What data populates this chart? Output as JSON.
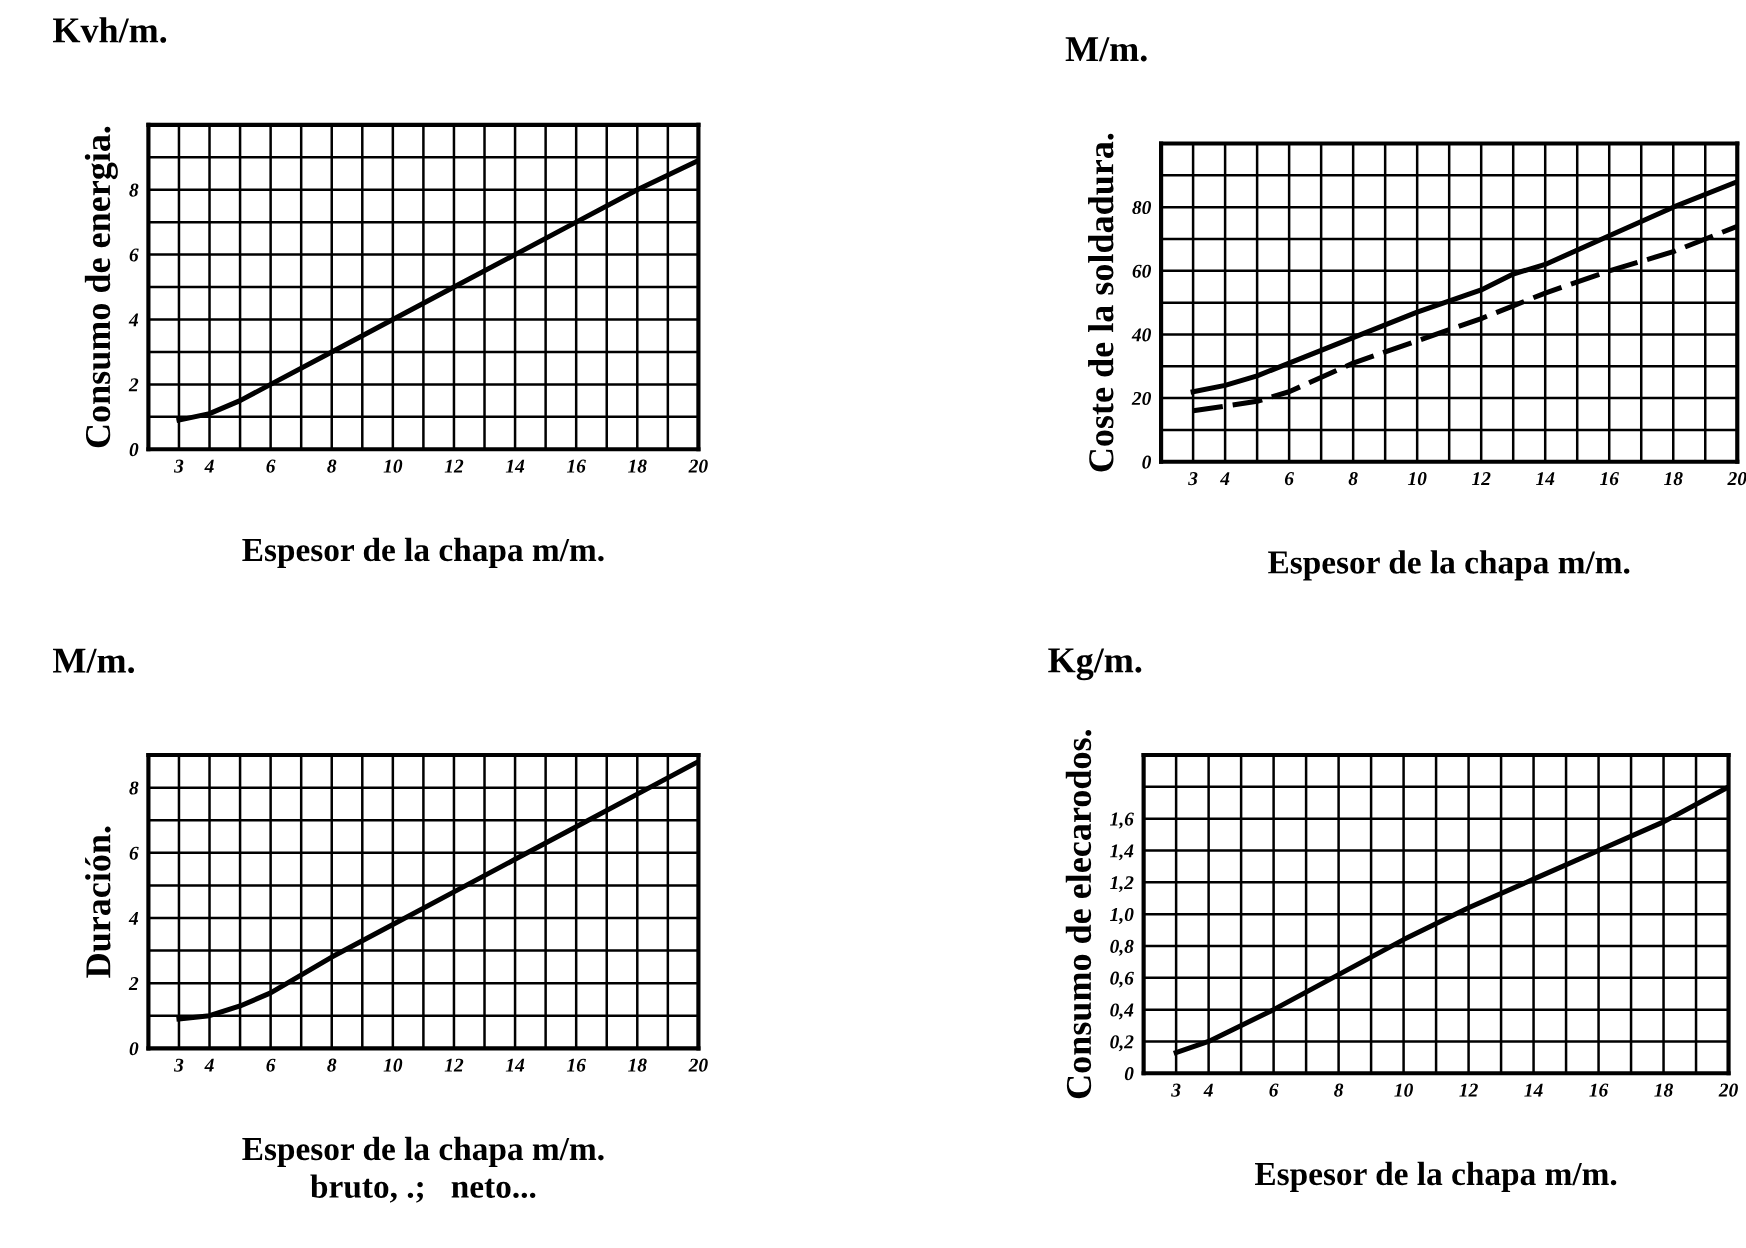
{
  "chart_data": [
    {
      "type": "line",
      "title": "Kvh/m.",
      "ylabel": "Consumo de energia.",
      "xlabel": "Espesor de la chapa m/m.",
      "x": [
        3,
        4,
        5,
        6,
        8,
        10,
        12,
        14,
        16,
        18,
        20
      ],
      "series": [
        {
          "color": "#000000",
          "values": [
            0.9,
            1.1,
            1.5,
            2.0,
            3.0,
            4.0,
            5.0,
            6.0,
            7.0,
            8.0,
            8.9
          ]
        }
      ],
      "xlim": [
        2,
        20
      ],
      "ylim": [
        0,
        10
      ],
      "xticks": [
        3,
        4,
        {
          "value": 5,
          "label": null
        },
        6,
        {
          "value": 7,
          "label": null
        },
        8,
        {
          "value": 9,
          "label": null
        },
        10,
        {
          "value": 11,
          "label": null
        },
        12,
        {
          "value": 13,
          "label": null
        },
        14,
        {
          "value": 15,
          "label": null
        },
        16,
        {
          "value": 17,
          "label": null
        },
        18,
        {
          "value": 19,
          "label": null
        },
        20
      ],
      "yticks": [
        0,
        {
          "value": 1,
          "label": null
        },
        2,
        {
          "value": 3,
          "label": null
        },
        4,
        {
          "value": 5,
          "label": null
        },
        6,
        {
          "value": 7,
          "label": null
        },
        8,
        {
          "value": 9,
          "label": null
        }
      ],
      "grid": true,
      "line_style": "solid",
      "marker": "none"
    },
    {
      "type": "line",
      "title": "M/m.",
      "ylabel": "Coste de la soldadura.",
      "xlabel": "Espesor de la chapa m/m.",
      "x": [
        3,
        4,
        5,
        6,
        8,
        10,
        12,
        13,
        14,
        16,
        18,
        20
      ],
      "series": [
        {
          "color": "#000000",
          "values": [
            22,
            24,
            27,
            31,
            39,
            47,
            54,
            59,
            62,
            71,
            80,
            88
          ]
        },
        {
          "color": "#000000",
          "values": [
            16,
            17.5,
            19,
            22,
            31,
            38,
            45,
            49,
            53,
            60,
            66,
            74
          ],
          "line_style": "dashed"
        }
      ],
      "xlim": [
        2,
        20
      ],
      "ylim": [
        0,
        100
      ],
      "xticks": [
        3,
        4,
        {
          "value": 5,
          "label": null
        },
        6,
        {
          "value": 7,
          "label": null
        },
        8,
        {
          "value": 9,
          "label": null
        },
        10,
        {
          "value": 11,
          "label": null
        },
        12,
        {
          "value": 13,
          "label": null
        },
        14,
        {
          "value": 15,
          "label": null
        },
        16,
        {
          "value": 17,
          "label": null
        },
        18,
        {
          "value": 19,
          "label": null
        },
        20
      ],
      "yticks": [
        0,
        {
          "value": 10,
          "label": null
        },
        20,
        {
          "value": 30,
          "label": null
        },
        40,
        {
          "value": 50,
          "label": null
        },
        60,
        {
          "value": 70,
          "label": null
        },
        80,
        {
          "value": 90,
          "label": null
        }
      ],
      "grid": true,
      "line_style": "solid",
      "marker": "none"
    },
    {
      "type": "line",
      "title": "M/m.",
      "ylabel": "Duración.",
      "xlabel": "Espesor de la chapa m/m.",
      "annotations": [
        "bruto, .;   neto..."
      ],
      "x": [
        3,
        4,
        5,
        6,
        8,
        10,
        12,
        14,
        16,
        18,
        20
      ],
      "series": [
        {
          "color": "#000000",
          "values": [
            0.9,
            1.0,
            1.3,
            1.7,
            2.8,
            3.8,
            4.8,
            5.8,
            6.8,
            7.8,
            8.8
          ]
        }
      ],
      "xlim": [
        2,
        20
      ],
      "ylim": [
        0,
        9
      ],
      "xticks": [
        3,
        4,
        {
          "value": 5,
          "label": null
        },
        6,
        {
          "value": 7,
          "label": null
        },
        8,
        {
          "value": 9,
          "label": null
        },
        10,
        {
          "value": 11,
          "label": null
        },
        12,
        {
          "value": 13,
          "label": null
        },
        14,
        {
          "value": 15,
          "label": null
        },
        16,
        {
          "value": 17,
          "label": null
        },
        18,
        {
          "value": 19,
          "label": null
        },
        20
      ],
      "yticks": [
        0,
        {
          "value": 1,
          "label": null
        },
        2,
        {
          "value": 3,
          "label": null
        },
        4,
        {
          "value": 5,
          "label": null
        },
        6,
        {
          "value": 7,
          "label": null
        },
        8
      ],
      "grid": true,
      "line_style": "solid",
      "marker": "none"
    },
    {
      "type": "line",
      "title": "Kg/m.",
      "ylabel": "Consumo de elecarodos.",
      "xlabel": "Espesor de la chapa m/m.",
      "x": [
        3,
        4,
        6,
        8,
        10,
        12,
        14,
        16,
        18,
        20
      ],
      "series": [
        {
          "color": "#000000",
          "values": [
            0.13,
            0.2,
            0.4,
            0.62,
            0.84,
            1.04,
            1.22,
            1.4,
            1.58,
            1.8
          ]
        }
      ],
      "xlim": [
        2,
        20
      ],
      "ylim": [
        0,
        2.0
      ],
      "xticks": [
        3,
        4,
        {
          "value": 5,
          "label": null
        },
        6,
        {
          "value": 7,
          "label": null
        },
        8,
        {
          "value": 9,
          "label": null
        },
        10,
        {
          "value": 11,
          "label": null
        },
        12,
        {
          "value": 13,
          "label": null
        },
        14,
        {
          "value": 15,
          "label": null
        },
        16,
        {
          "value": 17,
          "label": null
        },
        18,
        {
          "value": 19,
          "label": null
        },
        20
      ],
      "yticks": [
        0,
        {
          "value": 0.2,
          "label": "0,2"
        },
        {
          "value": 0.4,
          "label": "0,4"
        },
        {
          "value": 0.6,
          "label": "0,6"
        },
        {
          "value": 0.8,
          "label": "0,8"
        },
        {
          "value": 1.0,
          "label": "1,0"
        },
        {
          "value": 1.2,
          "label": "1,2"
        },
        {
          "value": 1.4,
          "label": "1,4"
        },
        {
          "value": 1.6,
          "label": "1,6"
        },
        {
          "value": 1.8,
          "label": null
        }
      ],
      "grid": true,
      "line_style": "solid",
      "marker": "none"
    }
  ]
}
